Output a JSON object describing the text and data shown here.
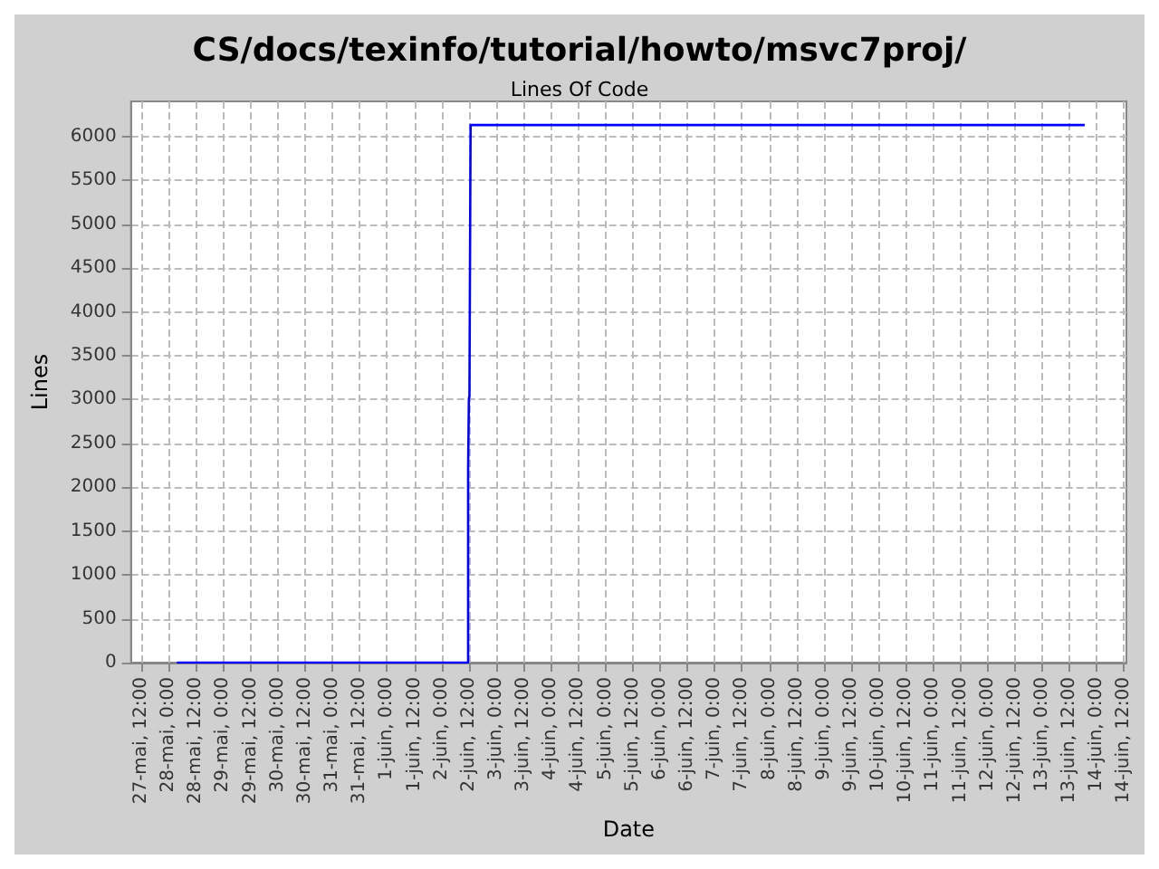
{
  "chart_data": {
    "type": "step",
    "title": "CS/docs/texinfo/tutorial/howto/msvc7proj/",
    "subtitle": "Lines Of Code",
    "xlabel": "Date",
    "ylabel": "Lines",
    "x": [
      "--05-28T03:40",
      "--06-02T11:40",
      "--06-02T12:00",
      "--06-02T12:15",
      "--06-02T12:45",
      "--06-13T18:40"
    ],
    "series": [
      {
        "color": "#0000ff",
        "values": [
          0,
          2200,
          3000,
          3050,
          6130,
          6130
        ]
      }
    ],
    "xlim": [
      "--05-27T07:30",
      "--06-14T13:00"
    ],
    "xticks": [
      {
        "value": "--05-27T12:00",
        "label": "27-mai, 12:00"
      },
      {
        "value": "--05-28T00:00",
        "label": "28-mai, 0:00"
      },
      {
        "value": "--05-28T12:00",
        "label": "28-mai, 12:00"
      },
      {
        "value": "--05-29T00:00",
        "label": "29-mai, 0:00"
      },
      {
        "value": "--05-29T12:00",
        "label": "29-mai, 12:00"
      },
      {
        "value": "--05-30T00:00",
        "label": "30-mai, 0:00"
      },
      {
        "value": "--05-30T12:00",
        "label": "30-mai, 12:00"
      },
      {
        "value": "--05-31T00:00",
        "label": "31-mai, 0:00"
      },
      {
        "value": "--05-31T12:00",
        "label": "31-mai, 12:00"
      },
      {
        "value": "--06-01T00:00",
        "label": "1-juin, 0:00"
      },
      {
        "value": "--06-01T12:00",
        "label": "1-juin, 12:00"
      },
      {
        "value": "--06-02T00:00",
        "label": "2-juin, 0:00"
      },
      {
        "value": "--06-02T12:00",
        "label": "2-juin, 12:00"
      },
      {
        "value": "--06-03T00:00",
        "label": "3-juin, 0:00"
      },
      {
        "value": "--06-03T12:00",
        "label": "3-juin, 12:00"
      },
      {
        "value": "--06-04T00:00",
        "label": "4-juin, 0:00"
      },
      {
        "value": "--06-04T12:00",
        "label": "4-juin, 12:00"
      },
      {
        "value": "--06-05T00:00",
        "label": "5-juin, 0:00"
      },
      {
        "value": "--06-05T12:00",
        "label": "5-juin, 12:00"
      },
      {
        "value": "--06-06T00:00",
        "label": "6-juin, 0:00"
      },
      {
        "value": "--06-06T12:00",
        "label": "6-juin, 12:00"
      },
      {
        "value": "--06-07T00:00",
        "label": "7-juin, 0:00"
      },
      {
        "value": "--06-07T12:00",
        "label": "7-juin, 12:00"
      },
      {
        "value": "--06-08T00:00",
        "label": "8-juin, 0:00"
      },
      {
        "value": "--06-08T12:00",
        "label": "8-juin, 12:00"
      },
      {
        "value": "--06-09T00:00",
        "label": "9-juin, 0:00"
      },
      {
        "value": "--06-09T12:00",
        "label": "9-juin, 12:00"
      },
      {
        "value": "--06-10T00:00",
        "label": "10-juin, 0:00"
      },
      {
        "value": "--06-10T12:00",
        "label": "10-juin, 12:00"
      },
      {
        "value": "--06-11T00:00",
        "label": "11-juin, 0:00"
      },
      {
        "value": "--06-11T12:00",
        "label": "11-juin, 12:00"
      },
      {
        "value": "--06-12T00:00",
        "label": "12-juin, 0:00"
      },
      {
        "value": "--06-12T12:00",
        "label": "12-juin, 12:00"
      },
      {
        "value": "--06-13T00:00",
        "label": "13-juin, 0:00"
      },
      {
        "value": "--06-13T12:00",
        "label": "13-juin, 12:00"
      },
      {
        "value": "--06-14T00:00",
        "label": "14-juin, 0:00"
      },
      {
        "value": "--06-14T12:00",
        "label": "14-juin, 12:00"
      }
    ],
    "ylim": [
      0,
      6400
    ],
    "yticks": [
      0,
      500,
      1000,
      1500,
      2000,
      2500,
      3000,
      3500,
      4000,
      4500,
      5000,
      5500,
      6000
    ],
    "grid": true,
    "marker": "none",
    "line_style": "solid"
  }
}
